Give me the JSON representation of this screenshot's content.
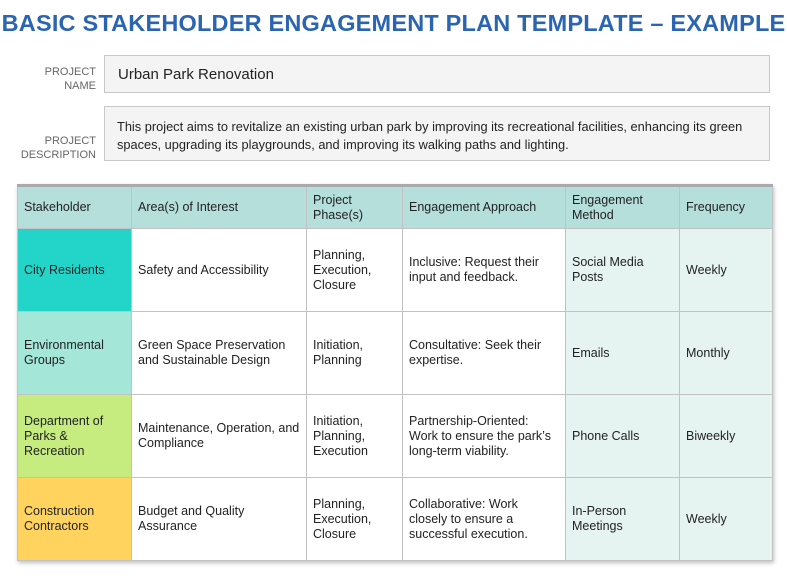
{
  "title": "BASIC STAKEHOLDER ENGAGEMENT PLAN TEMPLATE – EXAMPLE",
  "project": {
    "name_label": "PROJECT NAME",
    "name": "Urban Park Renovation",
    "description_label": "PROJECT DESCRIPTION",
    "description": "This project aims to revitalize an existing urban park by improving its recreational facilities, enhancing its green spaces, upgrading its playgrounds, and improving its walking paths and lighting."
  },
  "table": {
    "headers": [
      "Stakeholder",
      "Area(s) of Interest",
      "Project Phase(s)",
      "Engagement Approach",
      "Engagement Method",
      "Frequency"
    ],
    "rows": [
      {
        "stakeholder": "City Residents",
        "color": "#23d5c8",
        "interest": "Safety and Accessibility",
        "phases": "Planning, Execution, Closure",
        "approach": "Inclusive: Request their input and feedback.",
        "method": "Social Media Posts",
        "frequency": "Weekly"
      },
      {
        "stakeholder": "Environmental Groups",
        "color": "#a4e6d8",
        "interest": "Green Space Preservation and Sustainable Design",
        "phases": "Initiation, Planning",
        "approach": "Consultative: Seek their expertise.",
        "method": "Emails",
        "frequency": "Monthly"
      },
      {
        "stakeholder": "Department of Parks & Recreation",
        "color": "#c6ec7f",
        "interest": "Maintenance, Operation, and Compliance",
        "phases": "Initiation, Planning, Execution",
        "approach": "Partnership-Oriented: Work to ensure the park’s long-term viability.",
        "method": "Phone Calls",
        "frequency": "Biweekly"
      },
      {
        "stakeholder": "Construction Contractors",
        "color": "#ffd35d",
        "interest": "Budget and Quality Assurance",
        "phases": "Planning, Execution, Closure",
        "approach": "Collaborative: Work closely to ensure a successful execution.",
        "method": "In-Person Meetings",
        "frequency": "Weekly"
      }
    ]
  }
}
